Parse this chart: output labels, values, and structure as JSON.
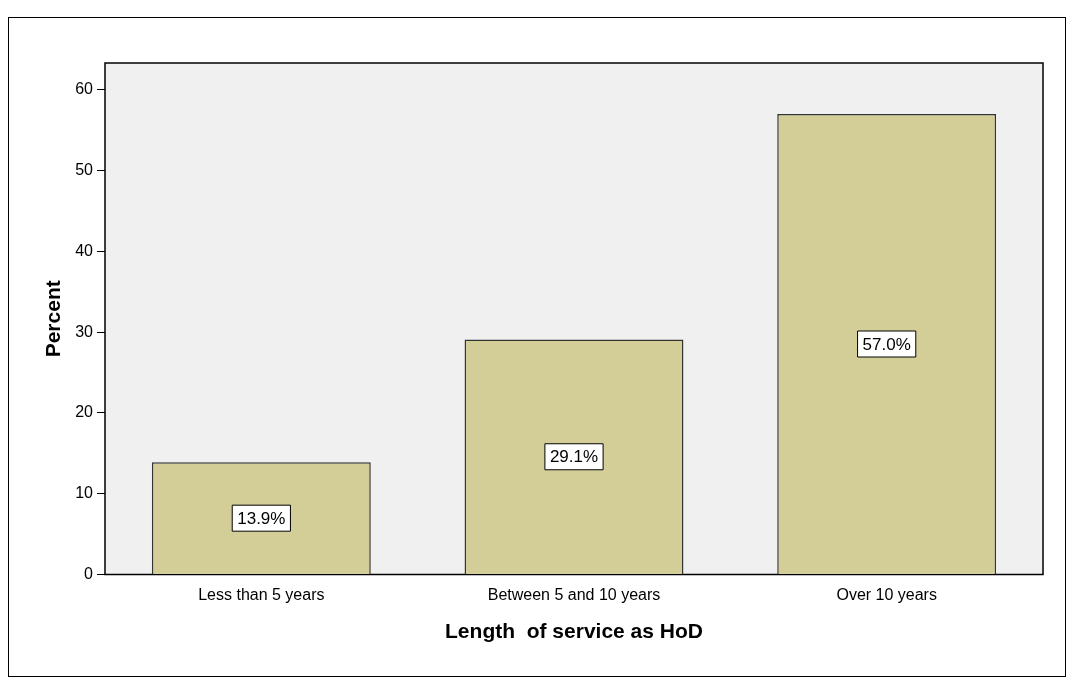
{
  "chart_data": {
    "type": "bar",
    "xlabel": "Length  of service as HoD",
    "ylabel": "Percent",
    "categories": [
      "Less than 5 years",
      "Between 5 and 10 years",
      "Over 10 years"
    ],
    "values": [
      13.9,
      29.1,
      57.0
    ],
    "color": "#d3ce97",
    "value_labels": [
      "13.9%",
      "29.1%",
      "57.0%"
    ],
    "ylim": [
      0,
      63.3
    ],
    "yticks": [
      0,
      10,
      20,
      30,
      40,
      50,
      60
    ],
    "legend": false
  }
}
